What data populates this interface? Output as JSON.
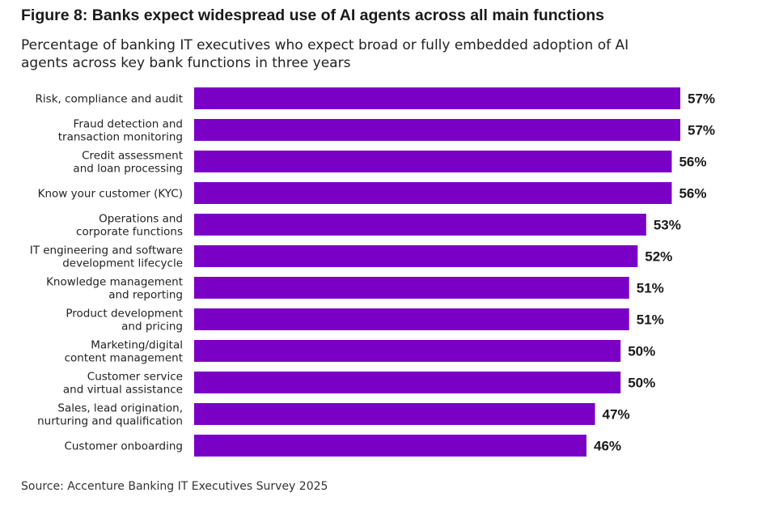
{
  "title": "Figure 8: Banks expect widespread use of AI agents across all main functions",
  "subtitle": "Percentage of banking IT executives who expect broad or fully embedded adoption of AI agents across key bank functions in three years",
  "source": "Source: Accenture Banking IT Executives Survey 2025",
  "colors": {
    "bar": "#7b00c6",
    "text": "#1a1a1a"
  },
  "chart_data": {
    "type": "bar",
    "orientation": "horizontal",
    "title": "Figure 8: Banks expect widespread use of AI agents across all main functions",
    "subtitle": "Percentage of banking IT executives who expect broad or fully embedded adoption of AI agents across key bank functions in three years",
    "categories": [
      [
        "Risk, compliance and audit"
      ],
      [
        "Fraud detection and",
        "transaction monitoring"
      ],
      [
        "Credit assessment",
        "and loan processing"
      ],
      [
        "Know your customer (KYC)"
      ],
      [
        "Operations and",
        "corporate functions"
      ],
      [
        "IT engineering and software",
        "development lifecycle"
      ],
      [
        "Knowledge management",
        "and reporting"
      ],
      [
        "Product development",
        "and pricing"
      ],
      [
        "Marketing/digital",
        "content management"
      ],
      [
        "Customer service",
        "and virtual assistance"
      ],
      [
        "Sales, lead origination,",
        "nurturing and qualification"
      ],
      [
        "Customer onboarding"
      ]
    ],
    "values": [
      57,
      57,
      56,
      56,
      53,
      52,
      51,
      51,
      50,
      50,
      47,
      46
    ],
    "value_labels": [
      "57%",
      "57%",
      "56%",
      "56%",
      "53%",
      "52%",
      "51%",
      "51%",
      "50%",
      "50%",
      "47%",
      "46%"
    ],
    "unit": "%",
    "xlim": [
      0,
      57
    ],
    "grid": false,
    "legend": "none"
  }
}
